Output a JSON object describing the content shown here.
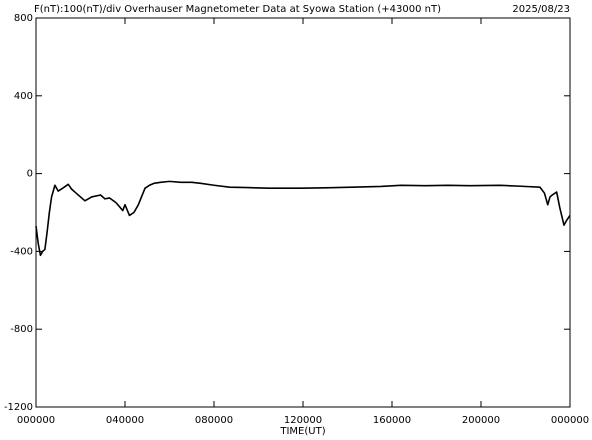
{
  "chart_data": {
    "type": "line",
    "title": "F(nT):100(nT)/div  Overhauser Magnetometer Data at Syowa Station (+43000 nT)",
    "date": "2025/08/23",
    "x_label": "TIME(UT)",
    "x": [
      0,
      0.1,
      0.2,
      0.3,
      0.4,
      0.5,
      0.6,
      0.7,
      0.85,
      1.0,
      1.2,
      1.45,
      1.6,
      1.8,
      2.0,
      2.2,
      2.5,
      2.9,
      3.1,
      3.3,
      3.6,
      3.9,
      4.0,
      4.2,
      4.4,
      4.6,
      4.9,
      5.1,
      5.3,
      5.6,
      6.0,
      6.5,
      7.0,
      7.4,
      8.0,
      8.7,
      9.5,
      10.5,
      11.9,
      13.0,
      14.2,
      15.5,
      16.4,
      17.5,
      18.5,
      19.5,
      20.85,
      21.8,
      22.65,
      22.85,
      23.0,
      23.1,
      23.2,
      23.4,
      23.55,
      23.73,
      23.85,
      24.0
    ],
    "values": [
      -270,
      -360,
      -420,
      -400,
      -390,
      -300,
      -200,
      -120,
      -60,
      -90,
      -75,
      -55,
      -80,
      -100,
      -120,
      -140,
      -120,
      -110,
      -130,
      -125,
      -150,
      -190,
      -160,
      -215,
      -200,
      -160,
      -75,
      -60,
      -50,
      -45,
      -40,
      -45,
      -45,
      -50,
      -60,
      -70,
      -72,
      -75,
      -75,
      -73,
      -70,
      -66,
      -60,
      -62,
      -60,
      -62,
      -60,
      -65,
      -70,
      -100,
      -160,
      -120,
      -110,
      -95,
      -180,
      -265,
      -240,
      -215
    ],
    "color": "#000000",
    "xlim": [
      0,
      24
    ],
    "xticks": [
      {
        "value": 0,
        "label": "000000"
      },
      {
        "value": 4,
        "label": "040000"
      },
      {
        "value": 8,
        "label": "080000"
      },
      {
        "value": 12,
        "label": "120000"
      },
      {
        "value": 16,
        "label": "160000"
      },
      {
        "value": 20,
        "label": "200000"
      },
      {
        "value": 24,
        "label": "000000"
      }
    ],
    "ylim": [
      -1200,
      800
    ],
    "yticks": [
      -1200,
      -800,
      -400,
      0,
      400,
      800
    ]
  }
}
